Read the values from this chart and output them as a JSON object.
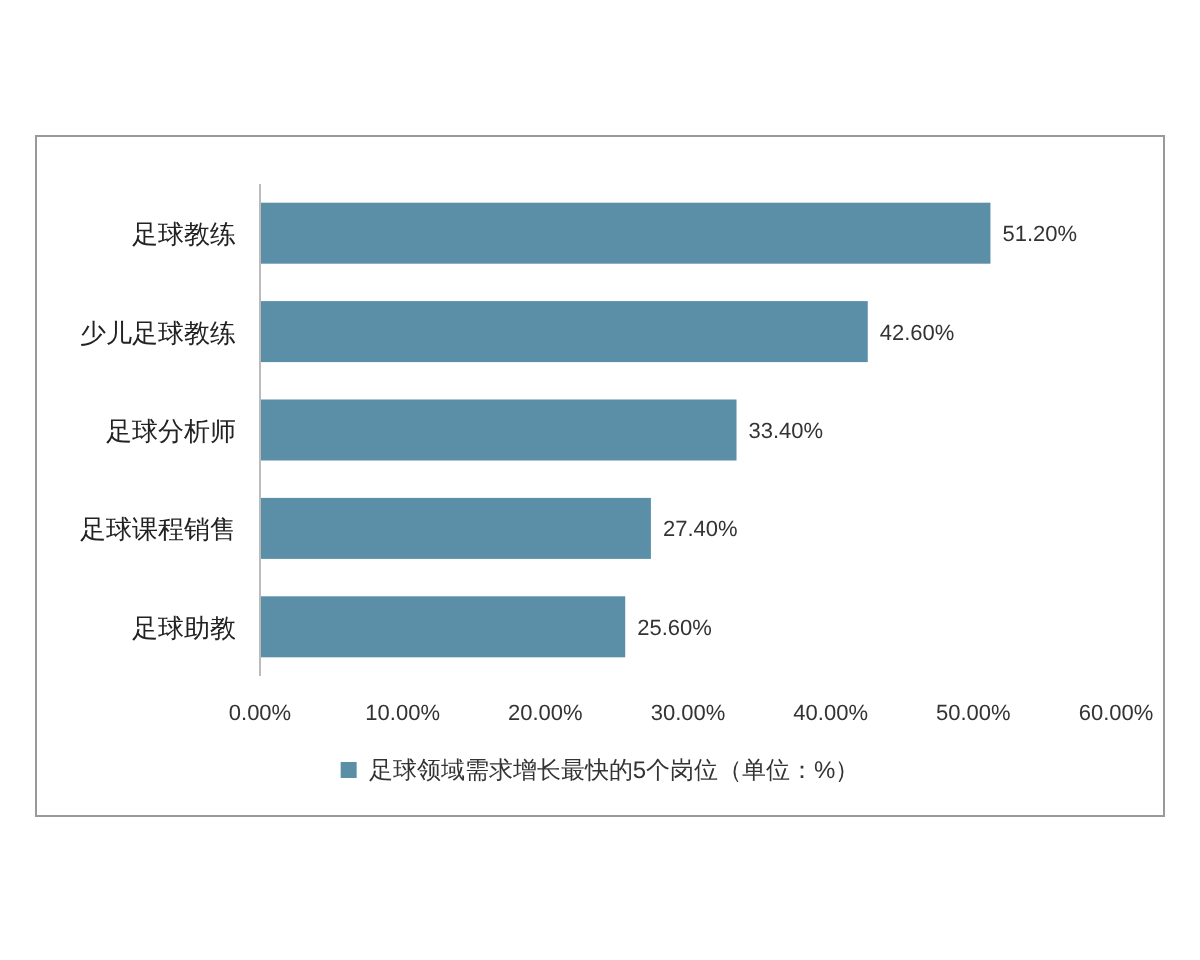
{
  "chart_data": {
    "type": "bar",
    "orientation": "horizontal",
    "categories": [
      "足球教练",
      "少儿足球教练",
      "足球分析师",
      "足球课程销售",
      "足球助教"
    ],
    "series": [
      {
        "name": "足球领域需求增长最快的5个岗位（单位：%）",
        "color": "#5b8fa8",
        "values": [
          51.2,
          42.6,
          33.4,
          27.4,
          25.6
        ],
        "value_labels": [
          "51.20%",
          "42.60%",
          "33.40%",
          "27.40%",
          "25.60%"
        ]
      }
    ],
    "xlim": [
      0,
      60
    ],
    "xticks": [
      {
        "value": 0,
        "label": "0.00%"
      },
      {
        "value": 10,
        "label": "10.00%"
      },
      {
        "value": 20,
        "label": "20.00%"
      },
      {
        "value": 30,
        "label": "30.00%"
      },
      {
        "value": 40,
        "label": "40.00%"
      },
      {
        "value": 50,
        "label": "50.00%"
      },
      {
        "value": 60,
        "label": "60.00%"
      }
    ],
    "grid": false,
    "legend": "bottom"
  }
}
